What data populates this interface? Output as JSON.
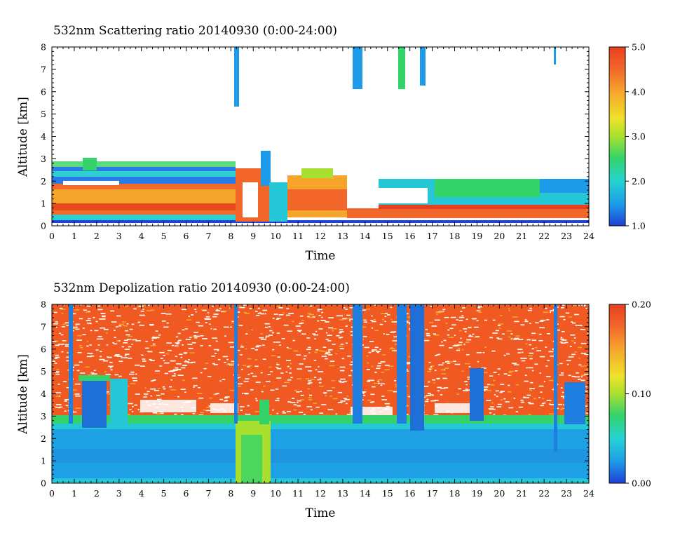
{
  "chart_data": [
    {
      "type": "heatmap",
      "title": "532nm Scattering ratio  20140930 (0:00-24:00)",
      "xlabel": "Time",
      "ylabel": "Altitude [km]",
      "xlim": [
        0,
        24
      ],
      "ylim": [
        0,
        8
      ],
      "x_ticks": [
        "0",
        "1",
        "2",
        "3",
        "4",
        "5",
        "6",
        "7",
        "8",
        "9",
        "10",
        "11",
        "12",
        "13",
        "14",
        "15",
        "16",
        "17",
        "18",
        "19",
        "20",
        "21",
        "22",
        "23",
        "24"
      ],
      "y_ticks": [
        "0",
        "1",
        "2",
        "3",
        "4",
        "5",
        "6",
        "7",
        "8"
      ],
      "colorbar": {
        "range": [
          1.0,
          5.0
        ],
        "tick_labels": [
          "1.0",
          "2.0",
          "3.0",
          "4.0",
          "5.0"
        ],
        "tick_values": [
          1.0,
          2.0,
          3.0,
          4.0,
          5.0
        ]
      },
      "colorscale": [
        "#1f3fd6",
        "#1e9be8",
        "#25d3d3",
        "#34d36a",
        "#a8e030",
        "#f0e22a",
        "#f6a52c",
        "#f2662a",
        "#e8401f"
      ],
      "structures": [
        {
          "x": [
            0,
            8.2
          ],
          "y": [
            0.5,
            1.8
          ],
          "value": 4.3
        },
        {
          "x": [
            0,
            8.2
          ],
          "y": [
            1.8,
            2.5
          ],
          "value": 2.0
        },
        {
          "x": [
            8.3,
            9.5
          ],
          "y": [
            0.2,
            1.1
          ],
          "value": 4.6
        },
        {
          "x": [
            9.5,
            10.2
          ],
          "y": [
            0.3,
            1.6
          ],
          "value": 1.9
        },
        {
          "x": [
            10.2,
            13.0
          ],
          "y": [
            0.7,
            1.9
          ],
          "value": 4.0
        },
        {
          "x": [
            13.0,
            24
          ],
          "y": [
            0.3,
            0.7
          ],
          "value": 4.5
        },
        {
          "x": [
            14.5,
            24
          ],
          "y": [
            1.0,
            2.0
          ],
          "value": 2.5
        },
        {
          "x": [
            8.1,
            8.3
          ],
          "y": [
            5.3,
            8.0
          ],
          "value": 2.0
        },
        {
          "x": [
            13.5,
            13.9
          ],
          "y": [
            5.8,
            8.0
          ],
          "value": 1.8
        },
        {
          "x": [
            15.6,
            15.9
          ],
          "y": [
            6.5,
            8.0
          ],
          "value": 1.7
        },
        {
          "x": [
            16.5,
            16.8
          ],
          "y": [
            6.2,
            8.0
          ],
          "value": 1.6
        },
        {
          "x": [
            22.5,
            22.6
          ],
          "y": [
            7.2,
            8.0
          ],
          "value": 1.5
        }
      ]
    },
    {
      "type": "heatmap",
      "title": "532nm Depolization ratio  20140930 (0:00-24:00)",
      "xlabel": "Time",
      "ylabel": "Altitude [km]",
      "xlim": [
        0,
        24
      ],
      "ylim": [
        0,
        8
      ],
      "x_ticks": [
        "0",
        "1",
        "2",
        "3",
        "4",
        "5",
        "6",
        "7",
        "8",
        "9",
        "10",
        "11",
        "12",
        "13",
        "14",
        "15",
        "16",
        "17",
        "18",
        "19",
        "20",
        "21",
        "22",
        "23",
        "24"
      ],
      "y_ticks": [
        "0",
        "1",
        "2",
        "3",
        "4",
        "5",
        "6",
        "7",
        "8"
      ],
      "colorbar": {
        "range": [
          0.0,
          0.2
        ],
        "tick_labels": [
          "0.00",
          "0.10",
          "0.20"
        ],
        "tick_values": [
          0.0,
          0.1,
          0.2
        ]
      },
      "colorscale": [
        "#1f3fd6",
        "#1e9be8",
        "#25d3d3",
        "#34d36a",
        "#a8e030",
        "#f0e22a",
        "#f6a52c",
        "#f2662a",
        "#e8401f"
      ],
      "structures": [
        {
          "x": [
            0,
            24
          ],
          "y": [
            0,
            2.5
          ],
          "value": 0.03
        },
        {
          "x": [
            8.3,
            9.8
          ],
          "y": [
            0,
            3.8
          ],
          "value": 0.09
        },
        {
          "x": [
            1.4,
            2.5
          ],
          "y": [
            2.5,
            4.5
          ],
          "value": 0.02
        },
        {
          "x": [
            0,
            24
          ],
          "y": [
            2.5,
            8.0
          ],
          "value": 0.19
        }
      ]
    }
  ]
}
